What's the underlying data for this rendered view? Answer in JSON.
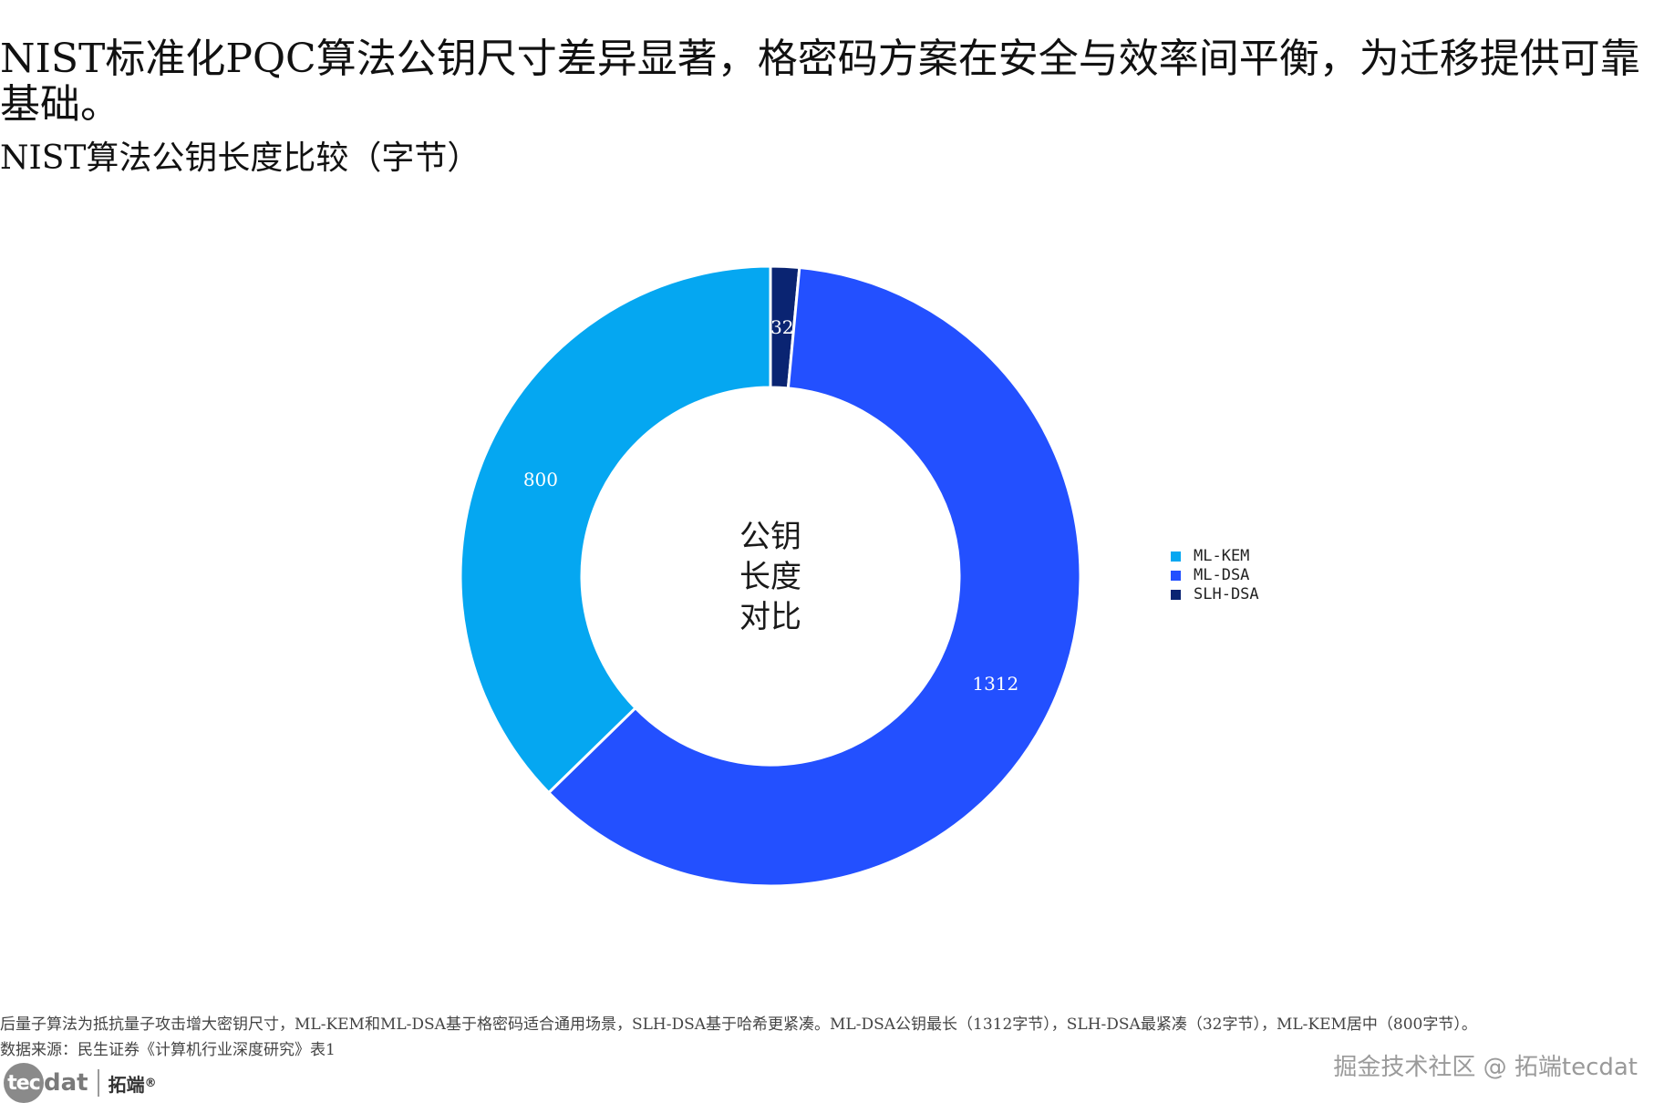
{
  "headline": "NIST标准化PQC算法公钥尺寸差异显著，格密码方案在安全与效率间平衡，为迁移提供可靠基础。",
  "chart_data": {
    "type": "pie",
    "variant": "donut",
    "title": "NIST算法公钥长度比较（字节）",
    "center_label_lines": [
      "公钥",
      "长度",
      "对比"
    ],
    "categories": [
      "ML-KEM",
      "ML-DSA",
      "SLH-DSA"
    ],
    "values": [
      800,
      1312,
      32
    ],
    "colors": [
      "#05A7F1",
      "#2350FF",
      "#0A2472"
    ],
    "start_angle_deg": 0,
    "direction": "clockwise",
    "slice_order": [
      "SLH-DSA",
      "ML-DSA",
      "ML-KEM"
    ],
    "data_labels": true,
    "legend_position": "right"
  },
  "footer": {
    "note": "后量子算法为抵抗量子攻击增大密钥尺寸，ML-KEM和ML-DSA基于格密码适合通用场景，SLH-DSA基于哈希更紧凑。ML-DSA公钥最长（1312字节），SLH-DSA最紧凑（32字节），ML-KEM居中（800字节）。",
    "source": "数据来源：民生证券《计算机行业深度研究》表1"
  },
  "logo": {
    "circle_text": "tec",
    "tail_text": "dat",
    "cn_text": "拓端",
    "mark": "®"
  },
  "watermark": "掘金技术社区 @ 拓端tecdat"
}
